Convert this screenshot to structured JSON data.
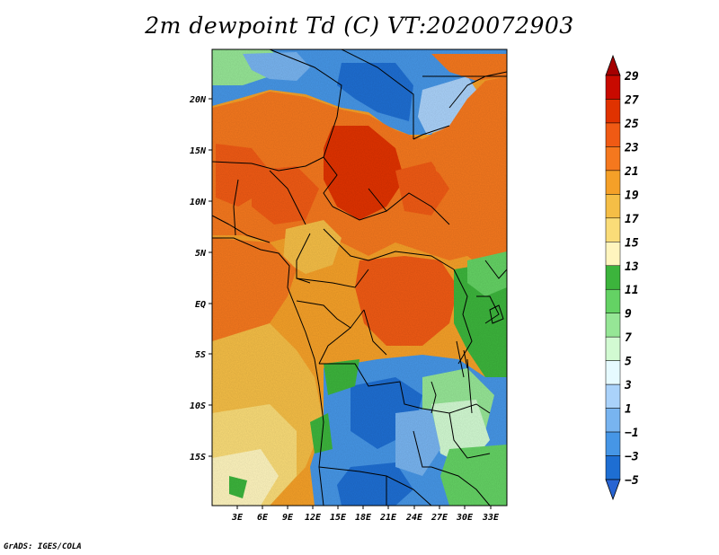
{
  "title": "2m dewpoint Td (C) VT:2020072903",
  "credit": "GrADS: IGES/COLA",
  "lat_labels": [
    "20N",
    "15N",
    "10N",
    "5N",
    "EQ",
    "5S",
    "10S",
    "15S"
  ],
  "lon_labels": [
    "3E",
    "6E",
    "9E",
    "12E",
    "15E",
    "18E",
    "21E",
    "24E",
    "27E",
    "30E",
    "33E"
  ],
  "colorbar": {
    "labels": [
      "29",
      "27",
      "25",
      "23",
      "21",
      "19",
      "17",
      "15",
      "13",
      "11",
      "9",
      "7",
      "5",
      "3",
      "1",
      "−1",
      "−3",
      "−5"
    ],
    "colors_top_to_bottom": [
      "#a50000",
      "#c80a00",
      "#e03200",
      "#f05a14",
      "#f5781e",
      "#f5a028",
      "#f5be46",
      "#fadc78",
      "#fff5be",
      "#3cb43c",
      "#64d264",
      "#96e696",
      "#d2fad2",
      "#e6faff",
      "#aad2fa",
      "#78b4f0",
      "#4696e6",
      "#1e6ed2",
      "#2864d2"
    ]
  }
}
